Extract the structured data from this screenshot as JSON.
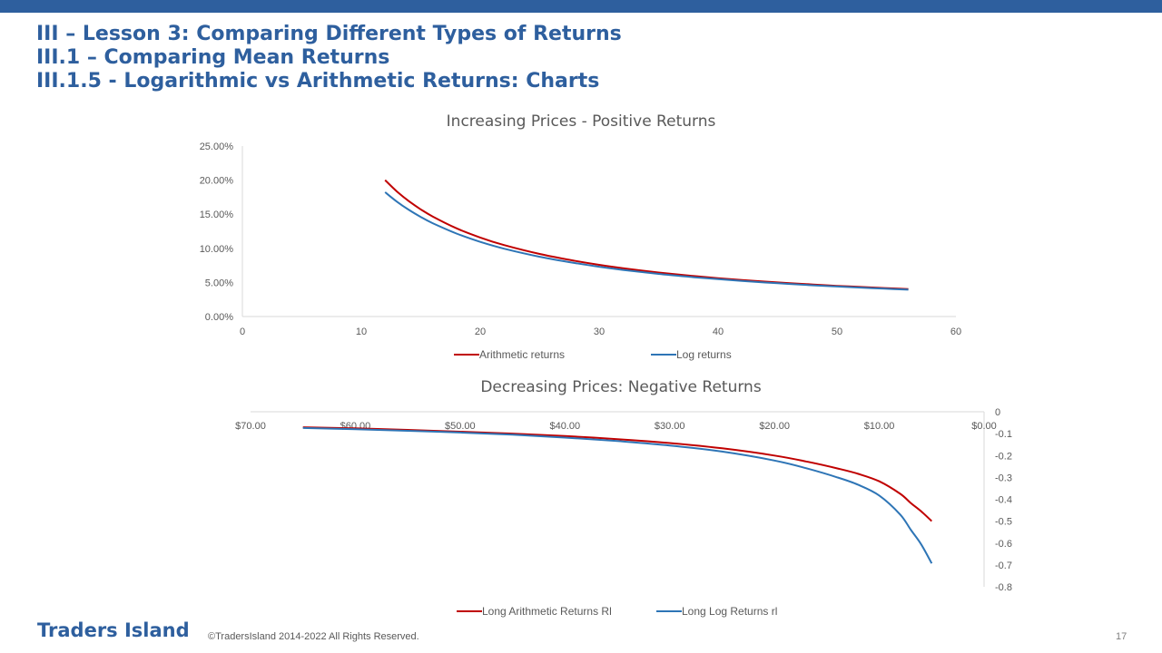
{
  "slide": {
    "title_line1": "III – Lesson 3: Comparing Different Types of Returns",
    "title_line2": "III.1 – Comparing Mean Returns",
    "title_line3": "III.1.5 - Logarithmic vs Arithmetic Returns: Charts",
    "footer_brand": "Traders Island",
    "footer_copyright": "©TradersIsland 2014-2022 All Rights Reserved.",
    "page_number": "17"
  },
  "colors": {
    "accent": "#2e5f9e",
    "arith": "#c00000",
    "log": "#2e75b6"
  },
  "chart_data": [
    {
      "type": "line",
      "title": "Increasing Prices - Positive Returns",
      "xlim": [
        0,
        60
      ],
      "ylim": [
        0,
        0.25
      ],
      "x_ticks": [
        "0",
        "10",
        "20",
        "30",
        "40",
        "50",
        "60"
      ],
      "y_ticks": [
        "0.00%",
        "5.00%",
        "10.00%",
        "15.00%",
        "20.00%",
        "25.00%"
      ],
      "grid": false,
      "legend": "bottom",
      "x": [
        12,
        13,
        14,
        15,
        16,
        18,
        20,
        22,
        25,
        28,
        30,
        32,
        35,
        38,
        40,
        42,
        45,
        48,
        50,
        52,
        54,
        56
      ],
      "series": [
        {
          "name": "Arithmetic returns",
          "color": "#c00000",
          "values": [
            0.2,
            0.1833,
            0.1692,
            0.1571,
            0.1467,
            0.1294,
            0.1158,
            0.1048,
            0.0917,
            0.0815,
            0.0758,
            0.0708,
            0.0645,
            0.0593,
            0.0563,
            0.0536,
            0.05,
            0.0469,
            0.045,
            0.0433,
            0.0417,
            0.0402
          ]
        },
        {
          "name": "Log returns",
          "color": "#2e75b6",
          "values": [
            0.1823,
            0.1683,
            0.1564,
            0.146,
            0.1369,
            0.1217,
            0.1095,
            0.0995,
            0.0876,
            0.0783,
            0.073,
            0.0684,
            0.0625,
            0.0576,
            0.0548,
            0.0522,
            0.0488,
            0.0458,
            0.044,
            0.0424,
            0.0408,
            0.0394
          ]
        }
      ]
    },
    {
      "type": "line",
      "title": "Decreasing Prices: Negative Returns",
      "xlim": [
        70,
        0
      ],
      "ylim": [
        -0.8,
        0
      ],
      "x_ticks": [
        "$70.00",
        "$60.00",
        "$50.00",
        "$40.00",
        "$30.00",
        "$20.00",
        "$10.00",
        "$0.00"
      ],
      "y_ticks": [
        "0",
        "-0.1",
        "-0.2",
        "-0.3",
        "-0.4",
        "-0.5",
        "-0.6",
        "-0.7",
        "-0.8"
      ],
      "grid": false,
      "legend": "bottom",
      "x": [
        65,
        60,
        55,
        50,
        45,
        40,
        35,
        30,
        25,
        20,
        17,
        14,
        12,
        10,
        8,
        7,
        6,
        5
      ],
      "series": [
        {
          "name": "Long Arithmetic Returns Rl",
          "color": "#c00000",
          "values": [
            -0.071,
            -0.076,
            -0.083,
            -0.091,
            -0.1,
            -0.111,
            -0.125,
            -0.143,
            -0.167,
            -0.2,
            -0.227,
            -0.259,
            -0.284,
            -0.318,
            -0.375,
            -0.417,
            -0.455,
            -0.5
          ]
        },
        {
          "name": "Long Log Returns rl",
          "color": "#2e75b6",
          "values": [
            -0.074,
            -0.08,
            -0.087,
            -0.095,
            -0.105,
            -0.118,
            -0.134,
            -0.154,
            -0.182,
            -0.223,
            -0.258,
            -0.3,
            -0.334,
            -0.383,
            -0.47,
            -0.539,
            -0.606,
            -0.693
          ]
        }
      ]
    }
  ]
}
